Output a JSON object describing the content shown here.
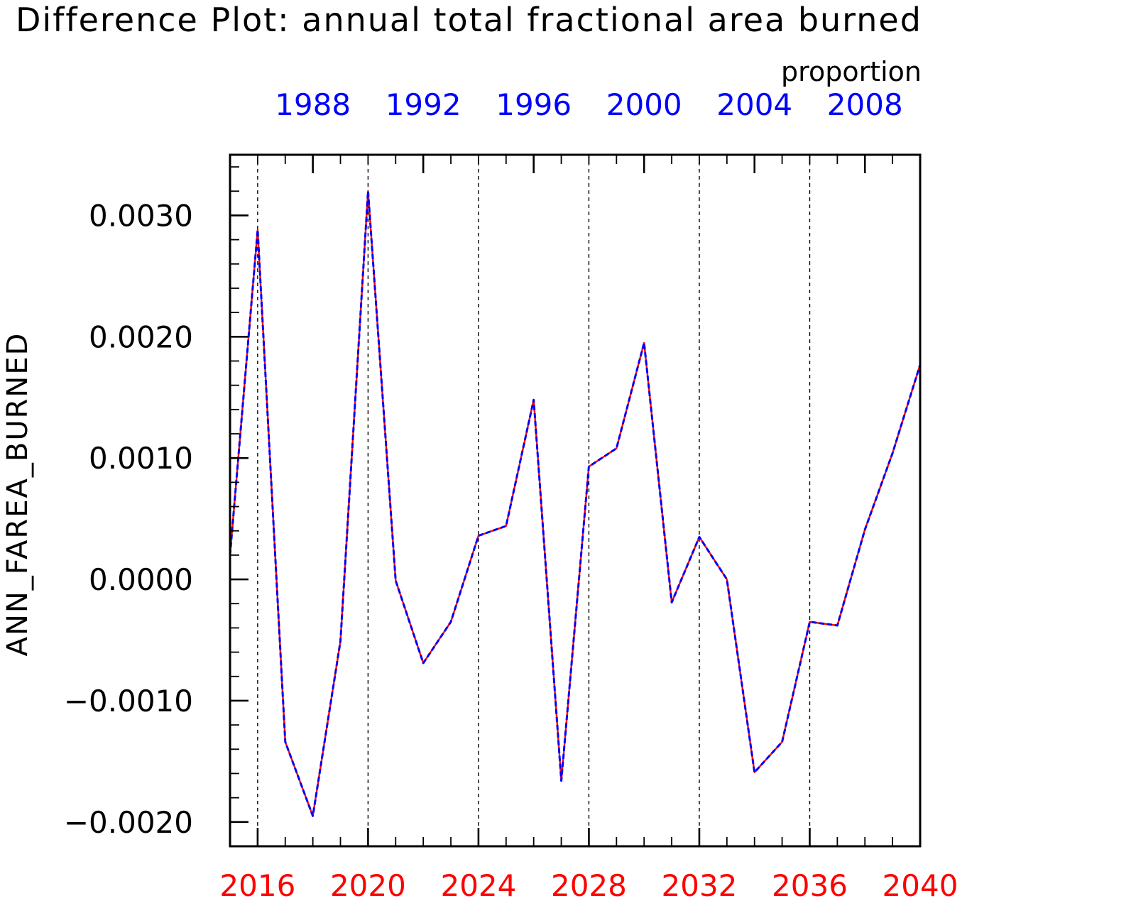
{
  "chart_data": {
    "type": "line",
    "title": "Difference Plot: annual total fractional area burned",
    "units_label": "proportion",
    "ylabel": "ANN_FAREA_BURNED",
    "ylim": [
      -0.0022,
      0.0035
    ],
    "yticks": [
      -0.002,
      -0.001,
      0.0,
      0.001,
      0.002,
      0.003
    ],
    "ytick_labels": [
      "−0.0020",
      "−0.0010",
      "0.0000",
      "0.0010",
      "0.0020",
      "0.0030"
    ],
    "x_bottom": {
      "range": [
        2015,
        2040
      ],
      "ticks": [
        2016,
        2020,
        2024,
        2028,
        2032,
        2036,
        2040
      ],
      "tick_labels": [
        "2016",
        "2020",
        "2024",
        "2028",
        "2032",
        "2036",
        "2040"
      ],
      "color": "#ff0000"
    },
    "x_top": {
      "range": [
        1985,
        2010
      ],
      "ticks": [
        1988,
        1992,
        1996,
        2000,
        2004,
        2008
      ],
      "tick_labels": [
        "1988",
        "1992",
        "1996",
        "2000",
        "2004",
        "2008"
      ],
      "color": "#0000ff"
    },
    "vertical_gridlines_at": [
      2016,
      2020,
      2024,
      2028,
      2032,
      2036
    ],
    "x": [
      2015,
      2016,
      2017,
      2018,
      2019,
      2020,
      2021,
      2022,
      2023,
      2024,
      2025,
      2026,
      2027,
      2028,
      2029,
      2030,
      2031,
      2032,
      2033,
      2034,
      2035,
      2036,
      2037,
      2038,
      2039,
      2040
    ],
    "series": [
      {
        "color": "#ff0000",
        "style": "solid",
        "values": [
          0.0002,
          0.00288,
          -0.00134,
          -0.00195,
          -0.00051,
          0.0032,
          -1e-05,
          -0.00069,
          -0.00035,
          0.00036,
          0.00044,
          0.00148,
          -0.00166,
          0.00093,
          0.00108,
          0.00195,
          -0.00019,
          0.00035,
          0.0,
          -0.00159,
          -0.00134,
          -0.00035,
          -0.00038,
          0.00041,
          0.00104,
          0.00177
        ]
      },
      {
        "color": "#0000ff",
        "style": "dashed",
        "values": [
          0.0002,
          0.00288,
          -0.00134,
          -0.00195,
          -0.00051,
          0.0032,
          -1e-05,
          -0.00069,
          -0.00035,
          0.00036,
          0.00044,
          0.00148,
          -0.00166,
          0.00093,
          0.00108,
          0.00195,
          -0.00019,
          0.00035,
          0.0,
          -0.00159,
          -0.00134,
          -0.00035,
          -0.00038,
          0.00041,
          0.00104,
          0.00177
        ]
      }
    ],
    "grid": "vertical dashed at major bottom ticks",
    "legend": "none"
  }
}
